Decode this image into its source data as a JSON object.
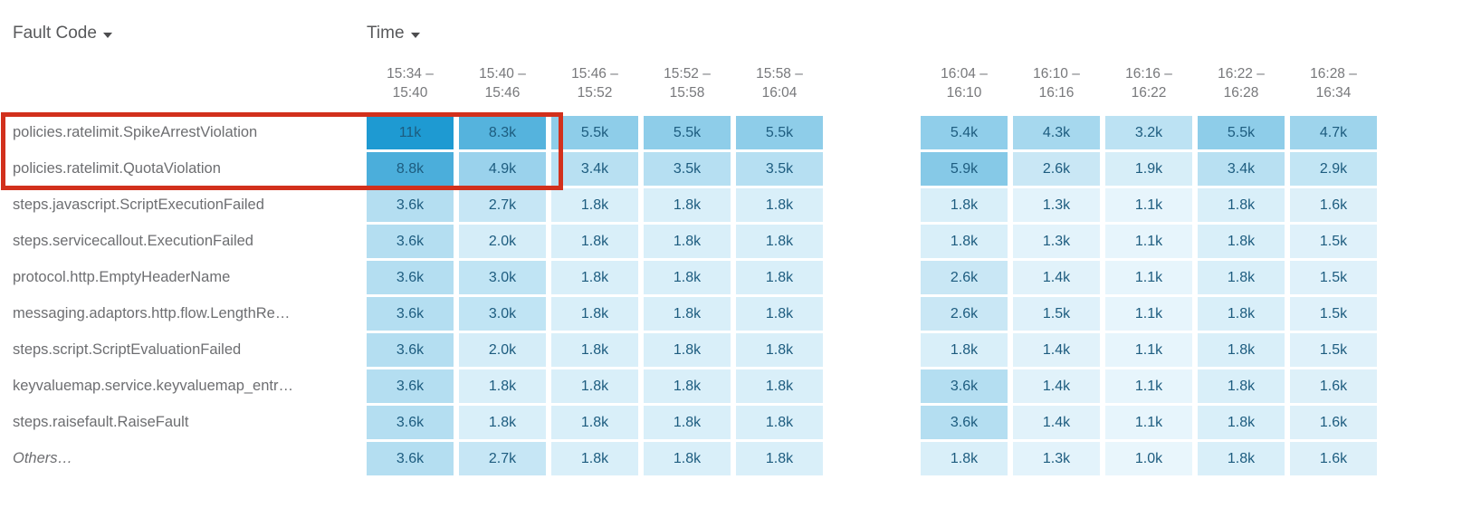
{
  "header": {
    "fault_code_label": "Fault Code",
    "time_label": "Time"
  },
  "chart_data": {
    "type": "heatmap",
    "row_axis_label": "Fault Code",
    "col_axis_label": "Time",
    "columns": [
      "15:34 –\n15:40",
      "15:40 –\n15:46",
      "15:46 –\n15:52",
      "15:52 –\n15:58",
      "15:58 –\n16:04",
      "16:04 –\n16:10",
      "16:10 –\n16:16",
      "16:16 –\n16:22",
      "16:22 –\n16:28",
      "16:28 –\n16:34"
    ],
    "rows": [
      {
        "label": "policies.ratelimit.SpikeArrestViolation",
        "italic": false,
        "values": [
          "11k",
          "8.3k",
          "5.5k",
          "5.5k",
          "5.5k",
          "5.4k",
          "4.3k",
          "3.2k",
          "5.5k",
          "4.7k"
        ]
      },
      {
        "label": "policies.ratelimit.QuotaViolation",
        "italic": false,
        "values": [
          "8.8k",
          "4.9k",
          "3.4k",
          "3.5k",
          "3.5k",
          "5.9k",
          "2.6k",
          "1.9k",
          "3.4k",
          "2.9k"
        ]
      },
      {
        "label": "steps.javascript.ScriptExecutionFailed",
        "italic": false,
        "values": [
          "3.6k",
          "2.7k",
          "1.8k",
          "1.8k",
          "1.8k",
          "1.8k",
          "1.3k",
          "1.1k",
          "1.8k",
          "1.6k"
        ]
      },
      {
        "label": "steps.servicecallout.ExecutionFailed",
        "italic": false,
        "values": [
          "3.6k",
          "2.0k",
          "1.8k",
          "1.8k",
          "1.8k",
          "1.8k",
          "1.3k",
          "1.1k",
          "1.8k",
          "1.5k"
        ]
      },
      {
        "label": "protocol.http.EmptyHeaderName",
        "italic": false,
        "values": [
          "3.6k",
          "3.0k",
          "1.8k",
          "1.8k",
          "1.8k",
          "2.6k",
          "1.4k",
          "1.1k",
          "1.8k",
          "1.5k"
        ]
      },
      {
        "label": "messaging.adaptors.http.flow.LengthRe…",
        "italic": false,
        "values": [
          "3.6k",
          "3.0k",
          "1.8k",
          "1.8k",
          "1.8k",
          "2.6k",
          "1.5k",
          "1.1k",
          "1.8k",
          "1.5k"
        ]
      },
      {
        "label": "steps.script.ScriptEvaluationFailed",
        "italic": false,
        "values": [
          "3.6k",
          "2.0k",
          "1.8k",
          "1.8k",
          "1.8k",
          "1.8k",
          "1.4k",
          "1.1k",
          "1.8k",
          "1.5k"
        ]
      },
      {
        "label": "keyvaluemap.service.keyvaluemap_entr…",
        "italic": false,
        "values": [
          "3.6k",
          "1.8k",
          "1.8k",
          "1.8k",
          "1.8k",
          "3.6k",
          "1.4k",
          "1.1k",
          "1.8k",
          "1.6k"
        ]
      },
      {
        "label": "steps.raisefault.RaiseFault",
        "italic": false,
        "values": [
          "3.6k",
          "1.8k",
          "1.8k",
          "1.8k",
          "1.8k",
          "3.6k",
          "1.4k",
          "1.1k",
          "1.8k",
          "1.6k"
        ]
      },
      {
        "label": "Others…",
        "italic": true,
        "values": [
          "3.6k",
          "2.7k",
          "1.8k",
          "1.8k",
          "1.8k",
          "1.8k",
          "1.3k",
          "1.0k",
          "1.8k",
          "1.6k"
        ]
      }
    ],
    "color_scale": {
      "min_value": 1000,
      "max_value": 11000,
      "min_color": "#e9f6fc",
      "max_color": "#1e9ad2"
    }
  },
  "colors": {
    "highlight_border": "#d2301c",
    "cell_text": "#1d5c7f",
    "row_label_text": "#6d6e71",
    "sort_header_text": "#58595b",
    "time_col_text": "#77787b"
  }
}
